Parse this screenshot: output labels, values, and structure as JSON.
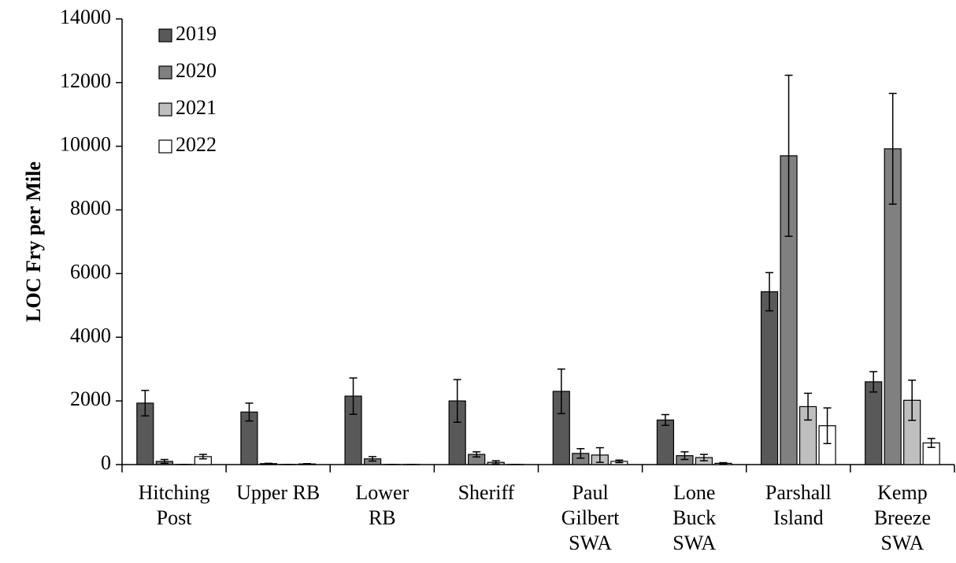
{
  "chart_data": {
    "type": "bar",
    "ylabel": "LOC Fry per Mile",
    "categories": [
      [
        "Hitching",
        "Post"
      ],
      [
        "Upper RB"
      ],
      [
        "Lower",
        "RB"
      ],
      [
        "Sheriff"
      ],
      [
        "Paul",
        "Gilbert",
        "SWA"
      ],
      [
        "Lone",
        "Buck",
        "SWA"
      ],
      [
        "Parshall",
        "Island"
      ],
      [
        "Kemp",
        "Breeze",
        "SWA"
      ]
    ],
    "series": [
      {
        "name": "2019",
        "color": "#595959",
        "values": [
          1930,
          1650,
          2150,
          2000,
          2300,
          1400,
          5430,
          2600
        ],
        "errors": [
          400,
          280,
          570,
          670,
          700,
          170,
          600,
          320
        ]
      },
      {
        "name": "2020",
        "color": "#808080",
        "values": [
          100,
          30,
          180,
          320,
          350,
          280,
          9700,
          9920
        ],
        "errors": [
          60,
          10,
          70,
          80,
          150,
          120,
          2530,
          1740
        ]
      },
      {
        "name": "2021",
        "color": "#bfbfbf",
        "values": [
          5,
          5,
          5,
          70,
          300,
          220,
          1820,
          2020
        ],
        "errors": [
          0,
          0,
          0,
          50,
          230,
          100,
          420,
          630
        ]
      },
      {
        "name": "2022",
        "color": "#ffffff",
        "values": [
          250,
          20,
          5,
          5,
          100,
          40,
          1220,
          680
        ],
        "errors": [
          70,
          10,
          0,
          0,
          40,
          20,
          560,
          140
        ]
      }
    ],
    "ylim": [
      0,
      14000
    ],
    "yticks": [
      0,
      2000,
      4000,
      6000,
      8000,
      10000,
      12000,
      14000
    ],
    "legend": "upper-left"
  }
}
